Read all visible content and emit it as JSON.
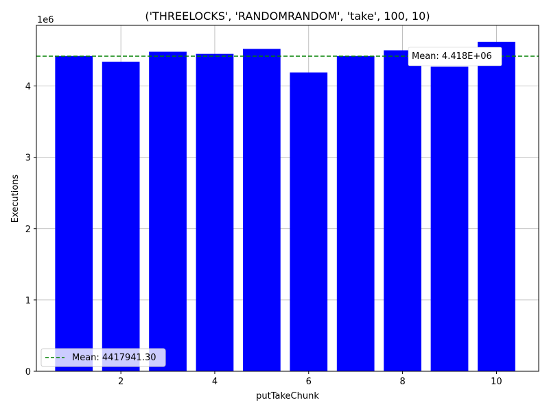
{
  "chart_data": {
    "type": "bar",
    "title": "('THREELOCKS', 'RANDOMRANDOM', 'take', 100, 10)",
    "xlabel": "putTakeChunk",
    "ylabel": "Executions",
    "y_multiplier_label": "1e6",
    "x": [
      1,
      2,
      3,
      4,
      5,
      6,
      7,
      8,
      9,
      10
    ],
    "values": [
      4420000,
      4340000,
      4480000,
      4450000,
      4520000,
      4190000,
      4420000,
      4500000,
      4270000,
      4620000
    ],
    "xlim": [
      0.2,
      10.9
    ],
    "ylim": [
      0,
      4850000
    ],
    "xticks": [
      2,
      4,
      6,
      8,
      10
    ],
    "yticks": [
      0,
      1,
      2,
      3,
      4
    ],
    "bar_color": "#0000ff",
    "grid": true,
    "mean": {
      "value": 4417941.3,
      "line_color": "#008000",
      "annotation": "Mean: 4.418E+06",
      "legend_label": "Mean: 4417941.30"
    },
    "legend_placement": "lower-left"
  }
}
